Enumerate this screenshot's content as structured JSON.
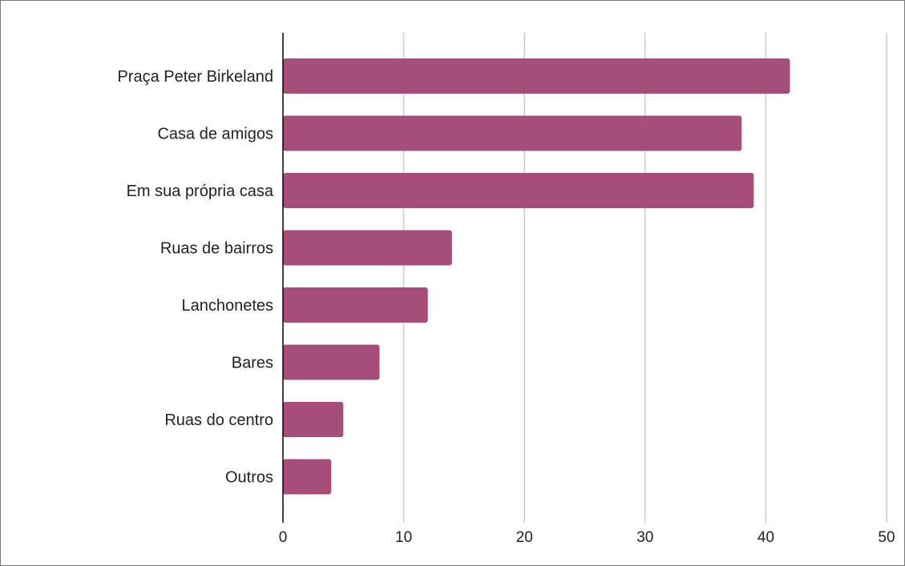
{
  "chart_data": {
    "type": "bar",
    "orientation": "horizontal",
    "categories": [
      "Praça Peter Birkeland",
      "Casa de amigos",
      "Em sua própria casa",
      "Ruas de bairros",
      "Lanchonetes",
      "Bares",
      "Ruas do centro",
      "Outros"
    ],
    "values": [
      42,
      38,
      39,
      14,
      12,
      8,
      5,
      4
    ],
    "xlim": [
      0,
      50
    ],
    "xticks": [
      0,
      10,
      20,
      30,
      40,
      50
    ],
    "grid": true,
    "legend": "none",
    "title": "",
    "xlabel": "",
    "ylabel": "",
    "bar_color": "#a64d79",
    "grid_color": "#cccccc",
    "axis_color": "#000000"
  }
}
